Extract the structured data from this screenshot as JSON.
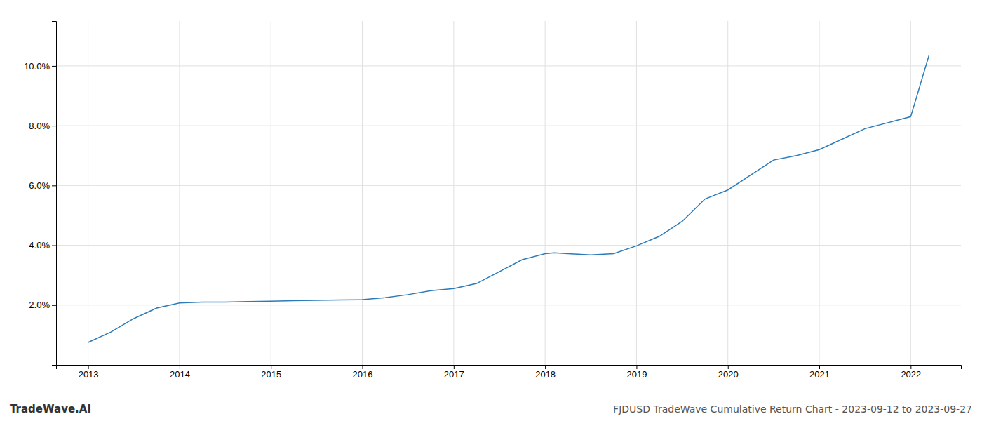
{
  "chart_data": {
    "type": "line",
    "title": "FJDUSD TradeWave Cumulative Return Chart - 2023-09-12 to 2023-09-27",
    "annotations": [
      "TradeWave.AI"
    ],
    "x": [
      2013.0,
      2013.25,
      2013.5,
      2013.75,
      2014.0,
      2014.25,
      2014.5,
      2014.75,
      2015.0,
      2015.25,
      2015.5,
      2015.75,
      2016.0,
      2016.25,
      2016.5,
      2016.75,
      2017.0,
      2017.25,
      2017.5,
      2017.75,
      2018.0,
      2018.1,
      2018.25,
      2018.5,
      2018.75,
      2019.0,
      2019.25,
      2019.5,
      2019.75,
      2020.0,
      2020.25,
      2020.5,
      2020.75,
      2021.0,
      2021.25,
      2021.5,
      2021.75,
      2022.0,
      2022.2
    ],
    "values": [
      0.75,
      1.1,
      1.55,
      1.9,
      2.07,
      2.1,
      2.1,
      2.12,
      2.13,
      2.15,
      2.16,
      2.17,
      2.18,
      2.25,
      2.35,
      2.48,
      2.55,
      2.72,
      3.12,
      3.52,
      3.72,
      3.75,
      3.72,
      3.68,
      3.72,
      3.98,
      4.3,
      4.8,
      5.55,
      5.85,
      6.35,
      6.85,
      7.0,
      7.2,
      7.55,
      7.9,
      8.1,
      8.3,
      10.35
    ],
    "color": "#2b7bba",
    "xlim": [
      2012.65,
      2022.55
    ],
    "ylim": [
      0.0,
      11.5
    ],
    "xticks": [
      2013,
      2014,
      2015,
      2016,
      2017,
      2018,
      2019,
      2020,
      2021,
      2022
    ],
    "yticks": [
      {
        "value": 2.0,
        "label": "2.0%"
      },
      {
        "value": 4.0,
        "label": "4.0%"
      },
      {
        "value": 6.0,
        "label": "6.0%"
      },
      {
        "value": 8.0,
        "label": "8.0%"
      },
      {
        "value": 10.0,
        "label": "10.0%"
      }
    ],
    "grid": true
  }
}
